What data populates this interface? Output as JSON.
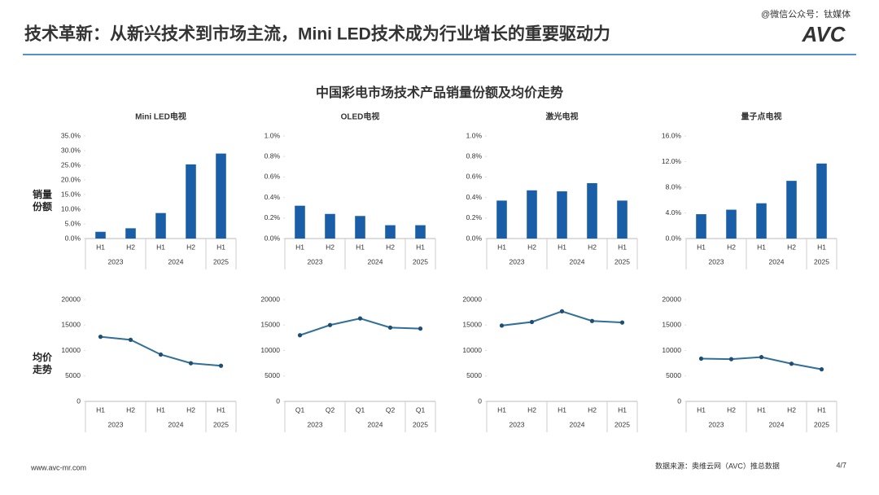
{
  "slide": {
    "title": "技术革新：从新兴技术到市场主流，Mini LED技术成为行业增长的重要驱动力",
    "watermark": "@微信公众号：钛媒体",
    "logo": "AVC",
    "subtitle": "中国彩电市场技术产品销量份额及均价走势",
    "row_labels": [
      "销量份额",
      "均价走势"
    ],
    "url": "www.avc-mr.com",
    "source": "数据来源：奥维云网（AVC）推总数据",
    "page": "4/7"
  },
  "chart_data": [
    {
      "type": "bar",
      "title": "Mini LED电视",
      "categories": [
        "H1",
        "H2",
        "H1",
        "H2",
        "H1"
      ],
      "category_years": [
        "2023",
        "2023",
        "2024",
        "2024",
        "2025"
      ],
      "values": [
        2.3,
        3.5,
        8.7,
        25.3,
        29.0
      ],
      "color": "#1a5ea8",
      "ylim": [
        0,
        35
      ],
      "yticks": [
        {
          "value": 0,
          "label": "0.0%"
        },
        {
          "value": 5,
          "label": "5.0%"
        },
        {
          "value": 10,
          "label": "10.0%"
        },
        {
          "value": 15,
          "label": "15.0%"
        },
        {
          "value": 20,
          "label": "20.0%"
        },
        {
          "value": 25,
          "label": "25.0%"
        },
        {
          "value": 30,
          "label": "30.0%"
        },
        {
          "value": 35,
          "label": "35.0%"
        }
      ]
    },
    {
      "type": "bar",
      "title": "OLED电视",
      "categories": [
        "H1",
        "H2",
        "H1",
        "H2",
        "H1"
      ],
      "category_years": [
        "2023",
        "2023",
        "2024",
        "2024",
        "2025"
      ],
      "values": [
        0.32,
        0.24,
        0.22,
        0.13,
        0.13
      ],
      "color": "#1a5ea8",
      "ylim": [
        0,
        1
      ],
      "yticks": [
        {
          "value": 0,
          "label": "0.0%"
        },
        {
          "value": 0.2,
          "label": "0.2%"
        },
        {
          "value": 0.4,
          "label": "0.4%"
        },
        {
          "value": 0.6,
          "label": "0.6%"
        },
        {
          "value": 0.8,
          "label": "0.8%"
        },
        {
          "value": 1,
          "label": "1.0%"
        }
      ]
    },
    {
      "type": "bar",
      "title": "激光电视",
      "categories": [
        "H1",
        "H2",
        "H1",
        "H2",
        "H1"
      ],
      "category_years": [
        "2023",
        "2023",
        "2024",
        "2024",
        "2025"
      ],
      "values": [
        0.37,
        0.47,
        0.46,
        0.54,
        0.37
      ],
      "color": "#1a5ea8",
      "ylim": [
        0,
        1
      ],
      "yticks": [
        {
          "value": 0,
          "label": "0.0%"
        },
        {
          "value": 0.2,
          "label": "0.2%"
        },
        {
          "value": 0.4,
          "label": "0.4%"
        },
        {
          "value": 0.6,
          "label": "0.6%"
        },
        {
          "value": 0.8,
          "label": "0.8%"
        },
        {
          "value": 1,
          "label": "1.0%"
        }
      ]
    },
    {
      "type": "bar",
      "title": "量子点电视",
      "categories": [
        "H1",
        "H2",
        "H1",
        "H2",
        "H1"
      ],
      "category_years": [
        "2023",
        "2023",
        "2024",
        "2024",
        "2025"
      ],
      "values": [
        3.8,
        4.5,
        5.5,
        9.0,
        11.7
      ],
      "color": "#1a5ea8",
      "ylim": [
        0,
        16
      ],
      "yticks": [
        {
          "value": 0,
          "label": "0.0%"
        },
        {
          "value": 4,
          "label": "4.0%"
        },
        {
          "value": 8,
          "label": "8.0%"
        },
        {
          "value": 12,
          "label": "12.0%"
        },
        {
          "value": 16,
          "label": "16.0%"
        }
      ]
    },
    {
      "type": "line",
      "categories": [
        "H1",
        "H2",
        "H1",
        "H2",
        "H1"
      ],
      "category_years": [
        "2023",
        "2023",
        "2024",
        "2024",
        "2025"
      ],
      "values": [
        12700,
        12100,
        9200,
        7500,
        7000
      ],
      "color": "#2f6f98",
      "ylim": [
        0,
        20000
      ],
      "yticks": [
        0,
        5000,
        10000,
        15000,
        20000
      ]
    },
    {
      "type": "line",
      "categories": [
        "Q1",
        "Q2",
        "Q1",
        "Q2",
        "Q1"
      ],
      "category_years": [
        "2023",
        "2023",
        "2024",
        "2024",
        "2025"
      ],
      "values": [
        13000,
        15000,
        16300,
        14500,
        14300
      ],
      "color": "#2f6f98",
      "ylim": [
        0,
        20000
      ],
      "yticks": [
        0,
        5000,
        10000,
        15000,
        20000
      ]
    },
    {
      "type": "line",
      "categories": [
        "H1",
        "H2",
        "H1",
        "H2",
        "H1"
      ],
      "category_years": [
        "2023",
        "2023",
        "2024",
        "2024",
        "2025"
      ],
      "values": [
        14900,
        15600,
        17700,
        15800,
        15500
      ],
      "color": "#2f6f98",
      "ylim": [
        0,
        20000
      ],
      "yticks": [
        0,
        5000,
        10000,
        15000,
        20000
      ]
    },
    {
      "type": "line",
      "categories": [
        "H1",
        "H2",
        "H1",
        "H2",
        "H1"
      ],
      "category_years": [
        "2023",
        "2023",
        "2024",
        "2024",
        "2025"
      ],
      "values": [
        8400,
        8300,
        8700,
        7400,
        6300
      ],
      "color": "#2f6f98",
      "ylim": [
        0,
        20000
      ],
      "yticks": [
        0,
        5000,
        10000,
        15000,
        20000
      ]
    }
  ]
}
